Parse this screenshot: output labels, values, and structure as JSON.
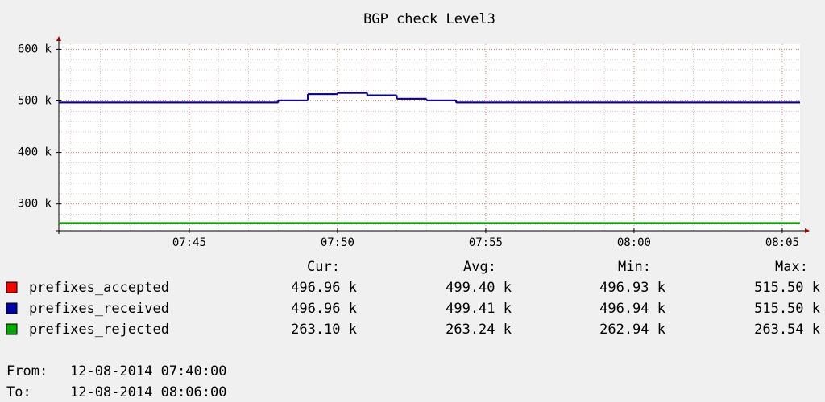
{
  "chart_data": {
    "type": "step",
    "title": "BGP check Level3",
    "xlim": [
      "07:40:36",
      "08:05:36"
    ],
    "xticks": [
      "07:45",
      "07:50",
      "07:55",
      "08:00",
      "08:05"
    ],
    "ylim": [
      248000,
      610000
    ],
    "yticks": [
      {
        "value": 300000,
        "label": "300 k"
      },
      {
        "value": 400000,
        "label": "400 k"
      },
      {
        "value": 500000,
        "label": "500 k"
      },
      {
        "value": 600000,
        "label": "600 k"
      }
    ],
    "grid": true,
    "minor_grid": true,
    "stat_headers": [
      "Cur:",
      "Avg:",
      "Min:",
      "Max:"
    ],
    "series": [
      {
        "name": "prefixes_accepted",
        "color": "#ff0000",
        "x": [
          "07:40:36",
          "07:48",
          "07:49",
          "07:50",
          "07:51",
          "07:52",
          "07:53",
          "07:54"
        ],
        "values": [
          497000,
          501000,
          513000,
          515500,
          511000,
          504000,
          501000,
          497000
        ],
        "stats": [
          "496.96 k",
          "499.40 k",
          "496.93 k",
          "515.50 k"
        ]
      },
      {
        "name": "prefixes_received",
        "color": "#0000aa",
        "x": [
          "07:40:36",
          "07:48",
          "07:49",
          "07:50",
          "07:51",
          "07:52",
          "07:53",
          "07:54"
        ],
        "values": [
          497000,
          501000,
          513000,
          515500,
          511000,
          504000,
          501000,
          497000
        ],
        "stats": [
          "496.96 k",
          "499.41 k",
          "496.94 k",
          "515.50 k"
        ]
      },
      {
        "name": "prefixes_rejected",
        "color": "#00aa00",
        "x": [
          "07:40:36"
        ],
        "values": [
          263000
        ],
        "stats": [
          "263.10 k",
          "263.24 k",
          "262.94 k",
          "263.54 k"
        ]
      }
    ],
    "footer": [
      {
        "label": "From:",
        "value": "12-08-2014 07:40:00"
      },
      {
        "label": "To:",
        "value": "12-08-2014 08:06:00"
      }
    ]
  }
}
